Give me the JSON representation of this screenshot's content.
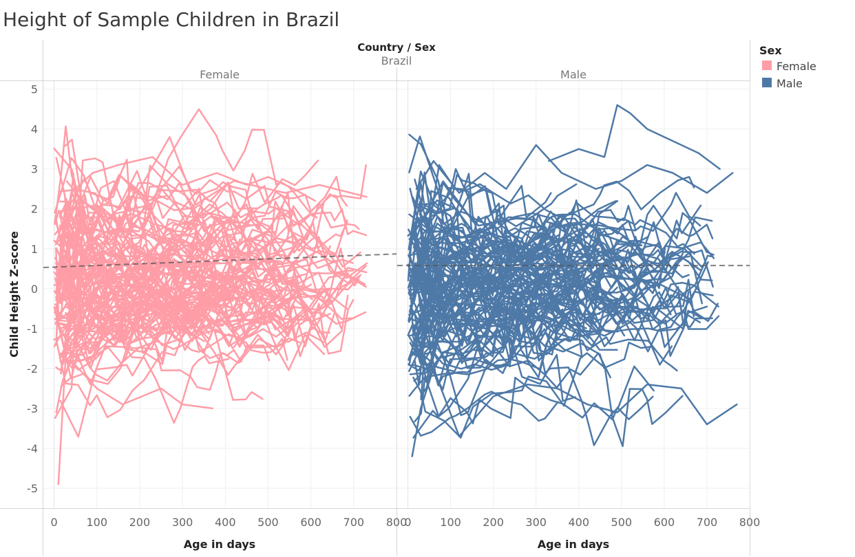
{
  "chart_data": {
    "type": "line",
    "title": "Height of Sample Children in Brazil",
    "column_header": {
      "label": "Country / Sex",
      "country": "Brazil"
    },
    "xlabel": "Age in days",
    "ylabel": "Child Height Z-score",
    "xlim": [
      -25,
      800
    ],
    "ylim": [
      -5.5,
      5.2
    ],
    "x_ticks": [
      0,
      100,
      200,
      300,
      400,
      500,
      600,
      700,
      800
    ],
    "y_ticks": [
      5,
      4,
      3,
      2,
      1,
      0,
      -1,
      -2,
      -3,
      -4,
      -5
    ],
    "grid": true,
    "legend": {
      "title": "Sex",
      "position": "right",
      "items": [
        {
          "label": "Female",
          "color": "#ff9da7"
        },
        {
          "label": "Male",
          "color": "#4e79a7"
        }
      ]
    },
    "panels": [
      {
        "name": "Female",
        "color": "#ff9da7",
        "trend": {
          "x": [
            -25,
            800
          ],
          "y": [
            0.53,
            0.87
          ]
        },
        "series_count": 110,
        "age_points": [
          3,
          14,
          28,
          42,
          56,
          70,
          84,
          98,
          112,
          126,
          140,
          154,
          168,
          182,
          196,
          210,
          224,
          238,
          252,
          266,
          280,
          294,
          308,
          322,
          336,
          350,
          364,
          378,
          392,
          406,
          420,
          434,
          448,
          462,
          476,
          490,
          504,
          518,
          532,
          546,
          560,
          574,
          588,
          602,
          616,
          630,
          644,
          658,
          672,
          686,
          700,
          714,
          728
        ],
        "highlight_series": [
          {
            "x": [
              10,
              28,
              60,
              120,
              200,
              270,
              330,
              420,
              540,
              620,
              730
            ],
            "y": [
              -4.9,
              -1.5,
              0.4,
              1.7,
              2.5,
              3.8,
              2.1,
              2.7,
              2.4,
              2.6,
              2.3
            ]
          },
          {
            "x": [
              5,
              20,
              40,
              100,
              160,
              250,
              300,
              370
            ],
            "y": [
              -3.1,
              -2.3,
              -1.8,
              -2.5,
              -2.9,
              -2.5,
              -2.9,
              -3.0
            ]
          },
          {
            "x": [
              15,
              40,
              90,
              150,
              230,
              300,
              380,
              450,
              500,
              560,
              610
            ],
            "y": [
              1.0,
              2.4,
              2.9,
              3.1,
              3.3,
              2.6,
              2.9,
              2.6,
              2.8,
              2.5,
              2.2
            ]
          }
        ]
      },
      {
        "name": "Male",
        "color": "#4e79a7",
        "trend": {
          "x": [
            -25,
            800
          ],
          "y": [
            0.58,
            0.58
          ]
        },
        "series_count": 110,
        "age_points": [
          3,
          14,
          28,
          42,
          56,
          70,
          84,
          98,
          112,
          126,
          140,
          154,
          168,
          182,
          196,
          210,
          224,
          238,
          252,
          266,
          280,
          294,
          308,
          322,
          336,
          350,
          364,
          378,
          392,
          406,
          420,
          434,
          448,
          462,
          476,
          490,
          504,
          518,
          532,
          546,
          560,
          574,
          588,
          602,
          616,
          630,
          644,
          658,
          672,
          686,
          700,
          714,
          728
        ],
        "highlight_series": [
          {
            "x": [
              330,
              400,
              460,
              490,
              520,
              560,
              600,
              640,
              680,
              730
            ],
            "y": [
              3.2,
              3.5,
              3.3,
              4.6,
              4.4,
              4.0,
              3.8,
              3.6,
              3.4,
              3.0
            ]
          },
          {
            "x": [
              10,
              30,
              60,
              120,
              200,
              280,
              350,
              420,
              490,
              560,
              640,
              700,
              770
            ],
            "y": [
              -4.2,
              -3.0,
              -2.0,
              -3.7,
              -2.7,
              -2.4,
              -2.5,
              -2.9,
              -3.1,
              -2.4,
              -2.5,
              -3.4,
              -2.9
            ]
          },
          {
            "x": [
              20,
              60,
              120,
              180,
              230,
              300,
              360,
              440,
              500,
              560,
              620,
              700,
              760
            ],
            "y": [
              2.5,
              3.2,
              2.4,
              2.9,
              2.5,
              3.6,
              2.9,
              2.5,
              2.7,
              3.1,
              2.9,
              2.4,
              2.9
            ]
          }
        ]
      }
    ]
  }
}
